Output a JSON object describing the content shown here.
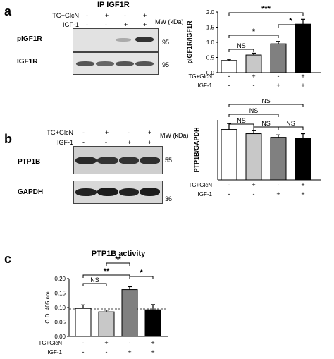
{
  "panels": {
    "a": {
      "letter": "a",
      "blot_title": "IP IGF1R",
      "treatment_rows": [
        {
          "label": "TG+GlcN",
          "signs": [
            "-",
            "+",
            "-",
            "+"
          ]
        },
        {
          "label": "IGF-1",
          "signs": [
            "-",
            "-",
            "+",
            "+"
          ]
        }
      ],
      "mw_label": "MW (kDa)",
      "bands": [
        {
          "label": "pIGF1R",
          "mw": "95"
        },
        {
          "label": "IGF1R",
          "mw": "95"
        }
      ]
    },
    "b": {
      "letter": "b",
      "treatment_rows": [
        {
          "label": "TG+GlcN",
          "signs": [
            "-",
            "+",
            "-",
            "+"
          ]
        },
        {
          "label": "IGF-1",
          "signs": [
            "-",
            "-",
            "+",
            "+"
          ]
        }
      ],
      "mw_label": "MW (kDa)",
      "bands": [
        {
          "label": "PTP1B",
          "mw": "55"
        },
        {
          "label": "GAPDH",
          "mw": "36"
        }
      ]
    },
    "c": {
      "letter": "c"
    }
  },
  "chart_data": [
    {
      "id": "a",
      "type": "bar",
      "title": "",
      "ylabel": "pIGF1R/IGF1R",
      "ylim": [
        0,
        2.0
      ],
      "yticks": [
        "0.0",
        "0.5",
        "1.0",
        "1.5",
        "2.0"
      ],
      "values": [
        0.4,
        0.58,
        0.95,
        1.6
      ],
      "errors": [
        0.04,
        0.06,
        0.08,
        0.16
      ],
      "colors": [
        "#ffffff",
        "#c8c8c8",
        "#808080",
        "#000000"
      ],
      "treatment_rows": [
        {
          "label": "TG+GlcN",
          "signs": [
            "-",
            "+",
            "-",
            "+"
          ]
        },
        {
          "label": "IGF-1",
          "signs": [
            "-",
            "-",
            "+",
            "+"
          ]
        }
      ],
      "comparisons": [
        {
          "from": 0,
          "to": 1,
          "label": "NS"
        },
        {
          "from": 0,
          "to": 2,
          "label": "*"
        },
        {
          "from": 2,
          "to": 3,
          "label": "*"
        },
        {
          "from": 0,
          "to": 3,
          "label": "***"
        }
      ]
    },
    {
      "id": "b",
      "type": "bar",
      "title": "",
      "ylabel": "PTP1B/GAPDH",
      "ylim": [
        0,
        1.0
      ],
      "yticks": [],
      "values": [
        0.84,
        0.77,
        0.71,
        0.7
      ],
      "errors": [
        0.1,
        0.05,
        0.04,
        0.07
      ],
      "colors": [
        "#ffffff",
        "#c8c8c8",
        "#808080",
        "#000000"
      ],
      "treatment_rows": [
        {
          "label": "TG+GlcN",
          "signs": [
            "-",
            "+",
            "-",
            "+"
          ]
        },
        {
          "label": "IGF-1",
          "signs": [
            "-",
            "-",
            "+",
            "+"
          ]
        }
      ],
      "comparisons": [
        {
          "from": 0,
          "to": 1,
          "label": "NS"
        },
        {
          "from": 1,
          "to": 2,
          "label": "NS"
        },
        {
          "from": 2,
          "to": 3,
          "label": "NS"
        },
        {
          "from": 0,
          "to": 2,
          "label": "NS"
        },
        {
          "from": 0,
          "to": 3,
          "label": "NS"
        }
      ]
    },
    {
      "id": "c",
      "type": "bar",
      "title": "PTP1B activity",
      "ylabel": "O.D. 405 nm",
      "ylim": [
        0,
        0.2
      ],
      "yticks": [
        "0.00",
        "0.05",
        "0.10",
        "0.15",
        "0.20"
      ],
      "reference_line": 0.095,
      "values": [
        0.097,
        0.085,
        0.162,
        0.092
      ],
      "errors": [
        0.012,
        0.006,
        0.01,
        0.018
      ],
      "colors": [
        "#ffffff",
        "#c8c8c8",
        "#808080",
        "#000000"
      ],
      "treatment_rows": [
        {
          "label": "TG+GlcN",
          "signs": [
            "-",
            "+",
            "-",
            "+"
          ]
        },
        {
          "label": "IGF-1",
          "signs": [
            "-",
            "-",
            "+",
            "+"
          ]
        }
      ],
      "comparisons": [
        {
          "from": 0,
          "to": 1,
          "label": "NS"
        },
        {
          "from": 0,
          "to": 2,
          "label": "**"
        },
        {
          "from": 1,
          "to": 2,
          "label": "**"
        },
        {
          "from": 2,
          "to": 3,
          "label": "*"
        }
      ]
    }
  ]
}
